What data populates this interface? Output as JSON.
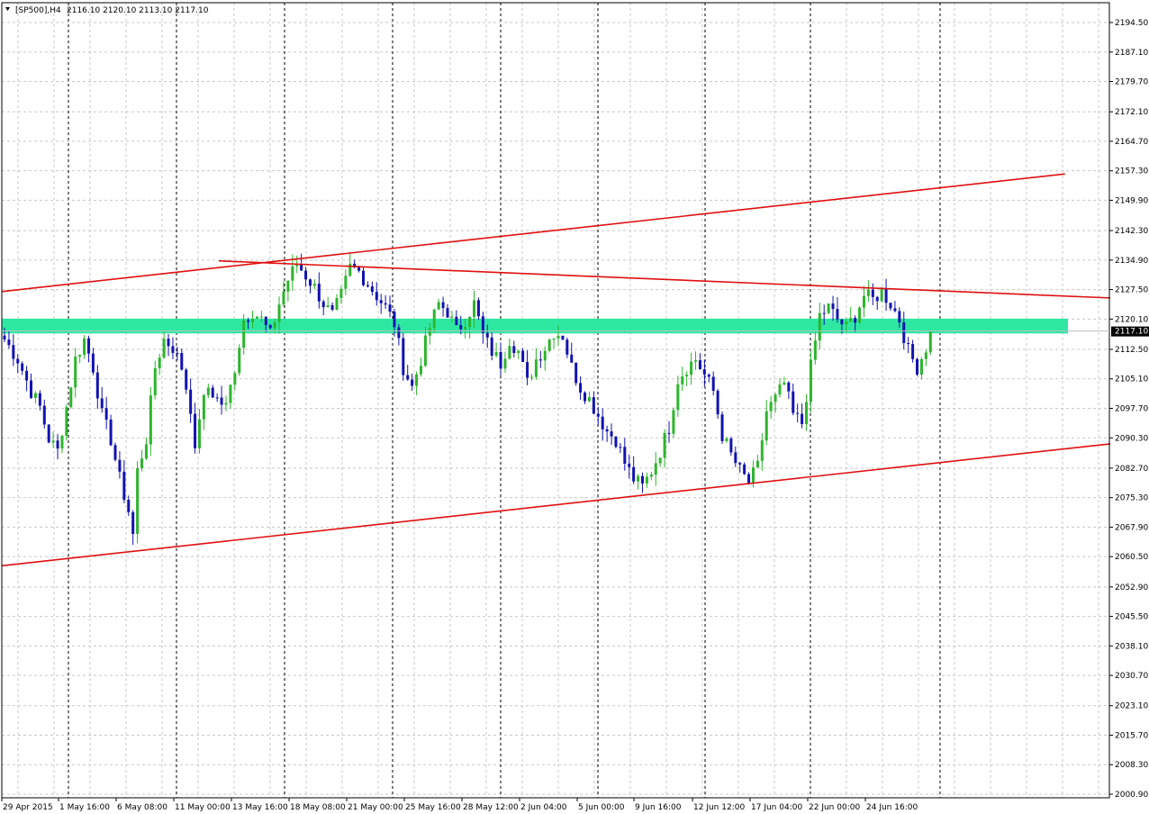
{
  "header": {
    "symbol": "[SP500],H4",
    "ohlc": "2116.10 2120.10 2113.10 2117.10"
  },
  "colors": {
    "bull": "#2db52d",
    "bear": "#1212b0",
    "trendline": "#e01010",
    "zone": "#2ee8a2",
    "grid": "#c8c8c8",
    "axis": "#000000",
    "price_tag_bg": "#000000",
    "price_tag_fg": "#ffffff"
  },
  "chart_data": {
    "type": "candlestick",
    "symbol": "[SP500]",
    "timeframe": "H4",
    "ylim": [
      2000.9,
      2198.5
    ],
    "y_ticks": [
      "2194.50",
      "2187.10",
      "2179.70",
      "2172.10",
      "2164.70",
      "2157.30",
      "2149.90",
      "2142.30",
      "2134.90",
      "2127.50",
      "2120.10",
      "2112.50",
      "2105.10",
      "2097.70",
      "2090.30",
      "2082.70",
      "2075.30",
      "2067.90",
      "2060.50",
      "2052.90",
      "2045.50",
      "2038.10",
      "2030.70",
      "2023.10",
      "2015.70",
      "2008.30",
      "2000.90"
    ],
    "x_labels": [
      "29 Apr 2015",
      "1 May 16:00",
      "6 May 08:00",
      "11 May 00:00",
      "13 May 16:00",
      "18 May 08:00",
      "21 May 00:00",
      "25 May 16:00",
      "28 May 12:00",
      "2 Jun 04:00",
      "5 Jun 00:00",
      "9 Jun 16:00",
      "12 Jun 12:00",
      "17 Jun 04:00",
      "22 Jun 00:00",
      "24 Jun 16:00"
    ],
    "day_separators": 16,
    "current_price": "2117.10",
    "support_zone": [
      2116.5,
      2120.2
    ],
    "close_path": [
      [
        0,
        2115
      ],
      [
        3,
        2110
      ],
      [
        6,
        2102
      ],
      [
        8,
        2098
      ],
      [
        10,
        2090
      ],
      [
        12,
        2087
      ],
      [
        14,
        2098
      ],
      [
        16,
        2110
      ],
      [
        18,
        2115
      ],
      [
        20,
        2108
      ],
      [
        22,
        2096
      ],
      [
        24,
        2090
      ],
      [
        26,
        2080
      ],
      [
        28,
        2072
      ],
      [
        29,
        2066
      ],
      [
        30,
        2082
      ],
      [
        32,
        2090
      ],
      [
        34,
        2108
      ],
      [
        36,
        2115
      ],
      [
        38,
        2113
      ],
      [
        40,
        2108
      ],
      [
        41,
        2103
      ],
      [
        42,
        2098
      ],
      [
        43,
        2086
      ],
      [
        44,
        2096
      ],
      [
        46,
        2103
      ],
      [
        48,
        2100
      ],
      [
        50,
        2098
      ],
      [
        52,
        2108
      ],
      [
        54,
        2120
      ],
      [
        56,
        2122
      ],
      [
        58,
        2120
      ],
      [
        60,
        2116
      ],
      [
        62,
        2124
      ],
      [
        64,
        2130
      ],
      [
        66,
        2134
      ],
      [
        68,
        2131
      ],
      [
        70,
        2128
      ],
      [
        72,
        2124
      ],
      [
        74,
        2121
      ],
      [
        76,
        2126
      ],
      [
        78,
        2133
      ],
      [
        80,
        2132
      ],
      [
        82,
        2129
      ],
      [
        84,
        2126
      ],
      [
        86,
        2123
      ],
      [
        88,
        2119
      ],
      [
        90,
        2108
      ],
      [
        92,
        2103
      ],
      [
        94,
        2110
      ],
      [
        96,
        2118
      ],
      [
        98,
        2124
      ],
      [
        100,
        2122
      ],
      [
        102,
        2117
      ],
      [
        104,
        2120
      ],
      [
        106,
        2124
      ],
      [
        108,
        2116
      ],
      [
        110,
        2112
      ],
      [
        112,
        2109
      ],
      [
        114,
        2115
      ],
      [
        116,
        2112
      ],
      [
        118,
        2104
      ],
      [
        120,
        2110
      ],
      [
        122,
        2113
      ],
      [
        124,
        2117
      ],
      [
        126,
        2116
      ],
      [
        128,
        2108
      ],
      [
        130,
        2103
      ],
      [
        132,
        2100
      ],
      [
        134,
        2096
      ],
      [
        136,
        2092
      ],
      [
        138,
        2090
      ],
      [
        140,
        2084
      ],
      [
        142,
        2080
      ],
      [
        144,
        2078
      ],
      [
        146,
        2082
      ],
      [
        148,
        2087
      ],
      [
        150,
        2093
      ],
      [
        152,
        2105
      ],
      [
        154,
        2108
      ],
      [
        156,
        2110
      ],
      [
        158,
        2106
      ],
      [
        160,
        2102
      ],
      [
        162,
        2091
      ],
      [
        164,
        2086
      ],
      [
        166,
        2082
      ],
      [
        168,
        2079
      ],
      [
        170,
        2083
      ],
      [
        172,
        2097
      ],
      [
        174,
        2100
      ],
      [
        176,
        2104
      ],
      [
        178,
        2096
      ],
      [
        180,
        2094
      ],
      [
        182,
        2108
      ],
      [
        184,
        2121
      ],
      [
        186,
        2123
      ],
      [
        188,
        2120
      ],
      [
        190,
        2118
      ],
      [
        192,
        2121
      ],
      [
        194,
        2126
      ],
      [
        196,
        2125
      ],
      [
        198,
        2127
      ],
      [
        200,
        2124
      ],
      [
        202,
        2120
      ],
      [
        204,
        2112
      ],
      [
        206,
        2108
      ],
      [
        208,
        2113
      ],
      [
        209,
        2117.1
      ]
    ],
    "trendlines": [
      {
        "from": [
          0,
          2127.2
        ],
        "to": [
          240,
          2124.9
        ],
        "style": "upper channel start (extended)"
      },
      {
        "from": [
          0,
          2127.0
        ],
        "to": [
          230,
          2156.5
        ]
      },
      {
        "from": [
          50,
          2134.7
        ],
        "to": [
          240,
          2125.4
        ]
      },
      {
        "from": [
          0,
          2058.2
        ],
        "to": [
          240,
          2088.8
        ]
      }
    ]
  }
}
